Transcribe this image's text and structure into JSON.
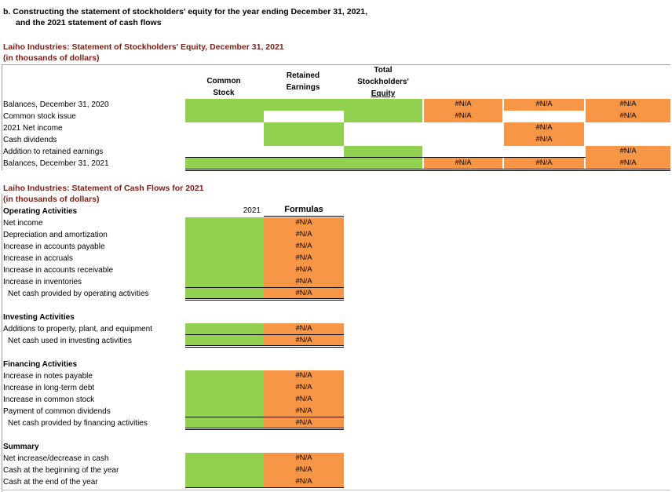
{
  "section_title_line1": "b. Constructing the statement of stockholders' equity for the year ending December 31, 2021,",
  "section_title_line2": "and the 2021 statement of cash flows",
  "equity": {
    "title": "Laiho Industries: Statement of Stockholders' Equity, December 31, 2021",
    "units": "(in thousands of dollars)",
    "col_common": [
      "Common",
      "Stock"
    ],
    "col_retained": [
      "Retained",
      "Earnings"
    ],
    "col_total": [
      "Total",
      "Stockholders'",
      "Equity"
    ],
    "rows": [
      "Balances, December 31, 2020",
      "Common stock issue",
      "2021 Net income",
      "Cash dividends",
      "Addition to retained earnings",
      "Balances, December 31, 2021"
    ],
    "na": "#N/A"
  },
  "cashflow": {
    "title": "Laiho Industries: Statement of Cash Flows for 2021",
    "units": "(in thousands of dollars)",
    "year": "2021",
    "formulas": "Formulas",
    "operating": {
      "header": "Operating Activities",
      "rows": [
        "Net income",
        "Depreciation and amortization",
        "Increase in accounts payable",
        "Increase in accruals",
        "Increase in accounts receivable",
        "Increase in inventories",
        "Net cash provided by operating activities"
      ]
    },
    "investing": {
      "header": "Investing Activities",
      "rows": [
        "Additions to property, plant, and equipment",
        "Net cash used in investing activities"
      ]
    },
    "financing": {
      "header": "Financing Activities",
      "rows": [
        "Increase in notes payable",
        "Increase in long-term debt",
        "Increase in common stock",
        "Payment of common dividends",
        "Net cash provided by financing activities"
      ]
    },
    "summary": {
      "header": "Summary",
      "rows": [
        "Net increase/decrease in cash",
        "Cash at the beginning of the year",
        "Cash at the end of the year"
      ]
    }
  },
  "colors": {
    "green": "#92d050",
    "orange": "#f79646",
    "title_red": "#7b1e14"
  }
}
